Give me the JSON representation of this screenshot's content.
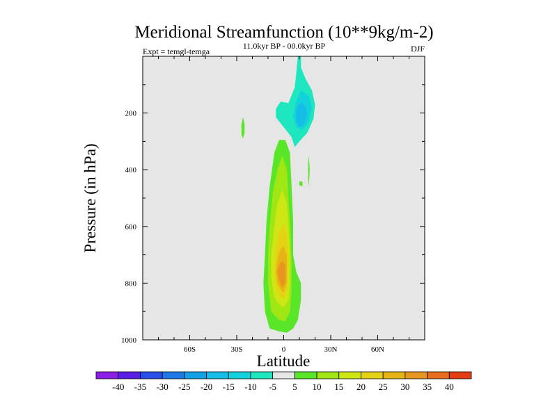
{
  "chart_data": {
    "type": "contour",
    "title": "Meridional Streamfunction (10**9kg/m-2)",
    "subtitle": "11.0kyr BP - 00.0kyr BP",
    "left_label": "Expt = temgl-temga",
    "right_label": "DJF",
    "xlabel": "Latitude",
    "ylabel": "Pressure (in hPa)",
    "xlim": [
      -90,
      90
    ],
    "ylim": [
      1000,
      0
    ],
    "x_ticks": [
      {
        "value": -60,
        "label": "60S"
      },
      {
        "value": -30,
        "label": "30S"
      },
      {
        "value": 0,
        "label": "0"
      },
      {
        "value": 30,
        "label": "30N"
      },
      {
        "value": 60,
        "label": "60N"
      }
    ],
    "y_ticks": [
      {
        "value": 200,
        "label": "200"
      },
      {
        "value": 400,
        "label": "400"
      },
      {
        "value": 600,
        "label": "600"
      },
      {
        "value": 800,
        "label": "800"
      },
      {
        "value": 1000,
        "label": "1000"
      }
    ],
    "background_color": "#e6e6e6",
    "colorbar": {
      "levels": [
        -40,
        -35,
        -30,
        -25,
        -20,
        -15,
        -10,
        -5,
        5,
        10,
        15,
        20,
        25,
        30,
        35,
        40
      ],
      "colors": [
        "#8c1ee6",
        "#5a1ee6",
        "#2850e6",
        "#1e78e6",
        "#14a0e6",
        "#14bee6",
        "#14d2dc",
        "#1ee6be",
        "#e6e6e6",
        "#5ae628",
        "#a0e614",
        "#cde614",
        "#e6d214",
        "#e6b414",
        "#e6961e",
        "#e66e1e",
        "#e63c14"
      ]
    },
    "features": [
      {
        "name": "positive-cell-outer",
        "sign": "positive",
        "min_level": 5,
        "centroid": [
          1,
          620
        ],
        "outline": [
          [
            -3,
            970
          ],
          [
            -9,
            960
          ],
          [
            -12,
            900
          ],
          [
            -13,
            800
          ],
          [
            -12,
            700
          ],
          [
            -11,
            580
          ],
          [
            -9,
            460
          ],
          [
            -6,
            340
          ],
          [
            -3,
            295
          ],
          [
            1,
            295
          ],
          [
            4,
            340
          ],
          [
            5,
            460
          ],
          [
            6,
            580
          ],
          [
            6,
            700
          ],
          [
            8,
            760
          ],
          [
            11,
            800
          ],
          [
            11,
            860
          ],
          [
            9,
            930
          ],
          [
            6,
            960
          ],
          [
            2,
            975
          ]
        ]
      },
      {
        "name": "positive-cell-10",
        "sign": "positive",
        "min_level": 10,
        "centroid": [
          0,
          650
        ],
        "outline": [
          [
            -3,
            930
          ],
          [
            -8,
            900
          ],
          [
            -10,
            800
          ],
          [
            -10,
            700
          ],
          [
            -9,
            600
          ],
          [
            -7,
            480
          ],
          [
            -4,
            400
          ],
          [
            -1,
            350
          ],
          [
            2,
            400
          ],
          [
            3,
            500
          ],
          [
            4,
            600
          ],
          [
            5,
            720
          ],
          [
            5,
            820
          ],
          [
            4,
            900
          ],
          [
            1,
            935
          ]
        ]
      },
      {
        "name": "positive-cell-15",
        "sign": "positive",
        "min_level": 15,
        "centroid": [
          0,
          680
        ],
        "outline": [
          [
            -2,
            880
          ],
          [
            -6,
            850
          ],
          [
            -8,
            780
          ],
          [
            -8,
            700
          ],
          [
            -6,
            600
          ],
          [
            -4,
            520
          ],
          [
            -1,
            470
          ],
          [
            2,
            520
          ],
          [
            3,
            600
          ],
          [
            4,
            700
          ],
          [
            4,
            800
          ],
          [
            3,
            860
          ],
          [
            0,
            885
          ]
        ]
      },
      {
        "name": "positive-cell-20",
        "sign": "positive",
        "min_level": 20,
        "centroid": [
          0,
          730
        ],
        "outline": [
          [
            -2,
            850
          ],
          [
            -5,
            820
          ],
          [
            -6,
            760
          ],
          [
            -5,
            680
          ],
          [
            -3,
            620
          ],
          [
            0,
            590
          ],
          [
            2,
            630
          ],
          [
            3,
            700
          ],
          [
            3,
            780
          ],
          [
            2,
            830
          ],
          [
            0,
            855
          ]
        ]
      },
      {
        "name": "positive-cell-25",
        "sign": "positive",
        "min_level": 25,
        "centroid": [
          0,
          765
        ],
        "outline": [
          [
            -1,
            830
          ],
          [
            -4,
            800
          ],
          [
            -5,
            760
          ],
          [
            -4,
            710
          ],
          [
            -2,
            680
          ],
          [
            0,
            670
          ],
          [
            2,
            700
          ],
          [
            2,
            760
          ],
          [
            2,
            800
          ],
          [
            0,
            832
          ]
        ]
      },
      {
        "name": "positive-cell-30",
        "sign": "positive",
        "min_level": 30,
        "centroid": [
          0,
          780
        ],
        "outline": [
          [
            -1,
            815
          ],
          [
            -3,
            790
          ],
          [
            -4,
            760
          ],
          [
            -3,
            735
          ],
          [
            -1,
            722
          ],
          [
            1,
            735
          ],
          [
            1,
            765
          ],
          [
            1,
            800
          ]
        ]
      },
      {
        "name": "negative-cell-outer",
        "sign": "negative",
        "min_level": -5,
        "centroid": [
          10,
          160
        ],
        "outline": [
          [
            9,
            0
          ],
          [
            11,
            0
          ],
          [
            11,
            40
          ],
          [
            14,
            80
          ],
          [
            18,
            120
          ],
          [
            20,
            170
          ],
          [
            19,
            220
          ],
          [
            15,
            270
          ],
          [
            10,
            300
          ],
          [
            7,
            320
          ],
          [
            5,
            285
          ],
          [
            0,
            250
          ],
          [
            -5,
            215
          ],
          [
            -5,
            185
          ],
          [
            -2,
            160
          ],
          [
            3,
            165
          ],
          [
            7,
            110
          ],
          [
            8,
            60
          ]
        ]
      },
      {
        "name": "negative-cell-10",
        "sign": "negative",
        "min_level": -10,
        "centroid": [
          11,
          210
        ],
        "outline": [
          [
            11,
            120
          ],
          [
            16,
            140
          ],
          [
            18,
            180
          ],
          [
            16,
            230
          ],
          [
            12,
            260
          ],
          [
            8,
            250
          ],
          [
            6,
            210
          ],
          [
            8,
            160
          ]
        ]
      },
      {
        "name": "negative-cell-15",
        "sign": "negative",
        "min_level": -15,
        "centroid": [
          11,
          215
        ],
        "outline": [
          [
            11,
            165
          ],
          [
            14,
            175
          ],
          [
            15,
            205
          ],
          [
            13,
            240
          ],
          [
            10,
            250
          ],
          [
            8,
            230
          ],
          [
            8,
            195
          ],
          [
            9,
            172
          ]
        ]
      },
      {
        "name": "small-positive-patch-west",
        "sign": "positive",
        "min_level": 5,
        "centroid": [
          -26,
          250
        ],
        "outline": [
          [
            -26,
            215
          ],
          [
            -25,
            240
          ],
          [
            -25,
            270
          ],
          [
            -26,
            290
          ],
          [
            -27,
            275
          ],
          [
            -27,
            240
          ]
        ]
      },
      {
        "name": "small-positive-patch-east",
        "sign": "positive",
        "min_level": 5,
        "centroid": [
          16,
          400
        ],
        "outline": [
          [
            16,
            350
          ],
          [
            16.6,
            400
          ],
          [
            16,
            460
          ],
          [
            15.6,
            430
          ],
          [
            15.6,
            380
          ]
        ]
      },
      {
        "name": "small-positive-patch-dot",
        "sign": "positive",
        "min_level": 5,
        "centroid": [
          11,
          450
        ],
        "outline": [
          [
            10,
            440
          ],
          [
            12,
            443
          ],
          [
            12,
            458
          ],
          [
            10,
            456
          ]
        ]
      }
    ]
  }
}
